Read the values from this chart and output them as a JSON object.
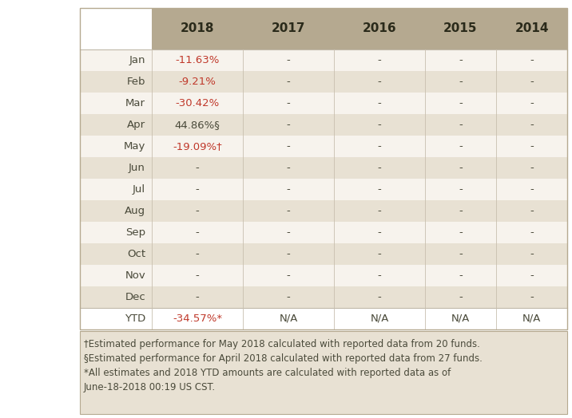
{
  "columns": [
    "",
    "2018",
    "2017",
    "2016",
    "2015",
    "2014"
  ],
  "rows": [
    [
      "Jan",
      "-11.63%",
      "-",
      "-",
      "-",
      "-"
    ],
    [
      "Feb",
      "-9.21%",
      "-",
      "-",
      "-",
      "-"
    ],
    [
      "Mar",
      "-30.42%",
      "-",
      "-",
      "-",
      "-"
    ],
    [
      "Apr",
      "44.86%§",
      "-",
      "-",
      "-",
      "-"
    ],
    [
      "May",
      "-19.09%†",
      "-",
      "-",
      "-",
      "-"
    ],
    [
      "Jun",
      "-",
      "-",
      "-",
      "-",
      "-"
    ],
    [
      "Jul",
      "-",
      "-",
      "-",
      "-",
      "-"
    ],
    [
      "Aug",
      "-",
      "-",
      "-",
      "-",
      "-"
    ],
    [
      "Sep",
      "-",
      "-",
      "-",
      "-",
      "-"
    ],
    [
      "Oct",
      "-",
      "-",
      "-",
      "-",
      "-"
    ],
    [
      "Nov",
      "-",
      "-",
      "-",
      "-",
      "-"
    ],
    [
      "Dec",
      "-",
      "-",
      "-",
      "-",
      "-"
    ],
    [
      "YTD",
      "-34.57%*",
      "N/A",
      "N/A",
      "N/A",
      "N/A"
    ]
  ],
  "red_rows_col1": [
    "Jan",
    "Feb",
    "Mar",
    "May",
    "YTD"
  ],
  "header_bg": "#b5a990",
  "row_bg_shaded": "#e8e1d3",
  "row_bg_white": "#f7f3ed",
  "ytd_bg": "#ffffff",
  "text_color_normal": "#4a4a3a",
  "text_color_red": "#c0392b",
  "footnote_bg": "#e8e1d3",
  "footnote1": "†Estimated performance for May 2018 calculated with reported data from 20 funds.",
  "footnote2": "§Estimated performance for April 2018 calculated with reported data from 27 funds.",
  "footnote3_line1": "*All estimates and 2018 YTD amounts are calculated with reported data as of",
  "footnote3_line2": "June-18-2018 00:19 US CST.",
  "figsize": [
    7.16,
    5.24
  ],
  "dpi": 100
}
